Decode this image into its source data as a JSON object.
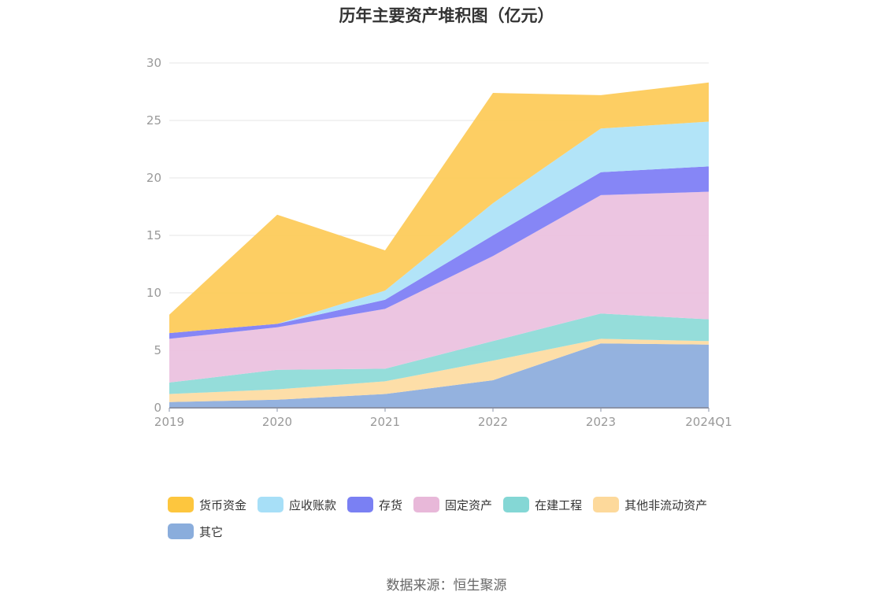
{
  "title": "历年主要资产堆积图（亿元）",
  "source": "数据来源：恒生聚源",
  "chart_data": {
    "type": "area",
    "stacked": true,
    "title": "历年主要资产堆积图（亿元）",
    "x": [
      "2019",
      "2020",
      "2021",
      "2022",
      "2023",
      "2024Q1"
    ],
    "ylim": [
      0,
      30
    ],
    "yticks": [
      "0",
      "5",
      "10",
      "15",
      "20",
      "25",
      "30"
    ],
    "grid": true,
    "legend_position": "bottom",
    "series": [
      {
        "name": "其它",
        "color": "#8eaedd",
        "values": [
          0.5,
          0.7,
          1.2,
          2.4,
          5.6,
          5.5
        ]
      },
      {
        "name": "其他非流动资产",
        "color": "#fddca3",
        "values": [
          0.7,
          0.9,
          1.1,
          1.7,
          0.4,
          0.3
        ]
      },
      {
        "name": "在建工程",
        "color": "#8fdbd8",
        "values": [
          1.0,
          1.7,
          1.1,
          1.7,
          2.2,
          1.9
        ]
      },
      {
        "name": "固定资产",
        "color": "#ebc2df",
        "values": [
          3.8,
          3.7,
          5.2,
          7.4,
          10.3,
          11.1
        ]
      },
      {
        "name": "存货",
        "color": "#8080f5",
        "values": [
          0.5,
          0.3,
          0.8,
          1.8,
          2.0,
          2.2
        ]
      },
      {
        "name": "应收账款",
        "color": "#aee3f8",
        "values": [
          0.0,
          0.0,
          0.8,
          2.8,
          3.8,
          3.9
        ]
      },
      {
        "name": "货币资金",
        "color": "#fdcb5b",
        "values": [
          1.6,
          9.5,
          3.5,
          9.6,
          2.9,
          3.4
        ]
      }
    ]
  },
  "legend_order": [
    "货币资金",
    "应收账款",
    "存货",
    "固定资产",
    "在建工程",
    "其他非流动资产",
    "其它"
  ],
  "legend_colors": [
    "#fdc63e",
    "#a7dff7",
    "#7a80f3",
    "#e8b8d9",
    "#84d7d5",
    "#fdd99b",
    "#8aaddc"
  ]
}
